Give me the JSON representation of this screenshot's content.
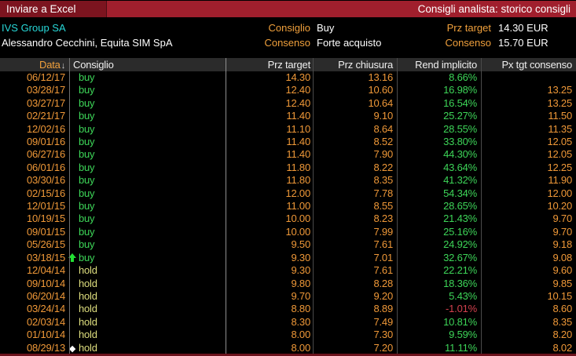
{
  "toolbar": {
    "export_label": "Inviare a Excel",
    "title": "Consigli analista: storico consigli"
  },
  "security": {
    "name": "IVS Group SA",
    "analyst": "Alessandro Cecchini, Equita SIM SpA"
  },
  "summary": {
    "consiglio_label": "Consiglio",
    "consiglio_value": "Buy",
    "prz_target_label": "Prz target",
    "prz_target_value": "14.30 EUR",
    "consenso_label": "Consenso",
    "consenso_value": "Forte acquisto",
    "consenso_px_label": "Consenso",
    "consenso_px_value": "15.70 EUR"
  },
  "table": {
    "columns": {
      "data": "Data",
      "consiglio": "Consiglio",
      "prz_target": "Prz target",
      "prz_chiusura": "Prz chiusura",
      "rend_implicito": "Rend implicito",
      "px_tgt_consenso": "Px tgt consenso"
    },
    "sort_column": "Data",
    "sort_direction": "down",
    "rows": [
      {
        "date": "06/12/17",
        "icon": "",
        "rating": "buy",
        "prz_target": "14.30",
        "prz_chiusura": "13.16",
        "rend": "8.66%",
        "px_tgt": ""
      },
      {
        "date": "03/28/17",
        "icon": "",
        "rating": "buy",
        "prz_target": "12.40",
        "prz_chiusura": "10.60",
        "rend": "16.98%",
        "px_tgt": "13.25"
      },
      {
        "date": "03/27/17",
        "icon": "",
        "rating": "buy",
        "prz_target": "12.40",
        "prz_chiusura": "10.64",
        "rend": "16.54%",
        "px_tgt": "13.25"
      },
      {
        "date": "02/21/17",
        "icon": "",
        "rating": "buy",
        "prz_target": "11.40",
        "prz_chiusura": "9.10",
        "rend": "25.27%",
        "px_tgt": "11.50"
      },
      {
        "date": "12/02/16",
        "icon": "",
        "rating": "buy",
        "prz_target": "11.10",
        "prz_chiusura": "8.64",
        "rend": "28.55%",
        "px_tgt": "11.35"
      },
      {
        "date": "09/01/16",
        "icon": "",
        "rating": "buy",
        "prz_target": "11.40",
        "prz_chiusura": "8.52",
        "rend": "33.80%",
        "px_tgt": "12.05"
      },
      {
        "date": "06/27/16",
        "icon": "",
        "rating": "buy",
        "prz_target": "11.40",
        "prz_chiusura": "7.90",
        "rend": "44.30%",
        "px_tgt": "12.05"
      },
      {
        "date": "06/01/16",
        "icon": "",
        "rating": "buy",
        "prz_target": "11.80",
        "prz_chiusura": "8.22",
        "rend": "43.64%",
        "px_tgt": "12.25"
      },
      {
        "date": "03/30/16",
        "icon": "",
        "rating": "buy",
        "prz_target": "11.80",
        "prz_chiusura": "8.35",
        "rend": "41.32%",
        "px_tgt": "11.90"
      },
      {
        "date": "02/15/16",
        "icon": "",
        "rating": "buy",
        "prz_target": "12.00",
        "prz_chiusura": "7.78",
        "rend": "54.34%",
        "px_tgt": "12.00"
      },
      {
        "date": "12/01/15",
        "icon": "",
        "rating": "buy",
        "prz_target": "11.00",
        "prz_chiusura": "8.55",
        "rend": "28.65%",
        "px_tgt": "10.20"
      },
      {
        "date": "10/19/15",
        "icon": "",
        "rating": "buy",
        "prz_target": "10.00",
        "prz_chiusura": "8.23",
        "rend": "21.43%",
        "px_tgt": "9.70"
      },
      {
        "date": "09/01/15",
        "icon": "",
        "rating": "buy",
        "prz_target": "10.00",
        "prz_chiusura": "7.99",
        "rend": "25.16%",
        "px_tgt": "9.70"
      },
      {
        "date": "05/26/15",
        "icon": "",
        "rating": "buy",
        "prz_target": "9.50",
        "prz_chiusura": "7.61",
        "rend": "24.92%",
        "px_tgt": "9.18"
      },
      {
        "date": "03/18/15",
        "icon": "up-arrow",
        "rating": "buy",
        "prz_target": "9.30",
        "prz_chiusura": "7.01",
        "rend": "32.67%",
        "px_tgt": "9.08"
      },
      {
        "date": "12/04/14",
        "icon": "",
        "rating": "hold",
        "prz_target": "9.30",
        "prz_chiusura": "7.61",
        "rend": "22.21%",
        "px_tgt": "9.60"
      },
      {
        "date": "09/10/14",
        "icon": "",
        "rating": "hold",
        "prz_target": "9.80",
        "prz_chiusura": "8.28",
        "rend": "18.36%",
        "px_tgt": "9.85"
      },
      {
        "date": "06/20/14",
        "icon": "",
        "rating": "hold",
        "prz_target": "9.70",
        "prz_chiusura": "9.20",
        "rend": "5.43%",
        "px_tgt": "10.15"
      },
      {
        "date": "03/24/14",
        "icon": "",
        "rating": "hold",
        "prz_target": "8.80",
        "prz_chiusura": "8.89",
        "rend": "-1.01%",
        "px_tgt": "8.60"
      },
      {
        "date": "02/03/14",
        "icon": "",
        "rating": "hold",
        "prz_target": "8.30",
        "prz_chiusura": "7.49",
        "rend": "10.81%",
        "px_tgt": "8.35"
      },
      {
        "date": "01/10/14",
        "icon": "",
        "rating": "hold",
        "prz_target": "8.00",
        "prz_chiusura": "7.30",
        "rend": "9.59%",
        "px_tgt": "8.20"
      },
      {
        "date": "08/29/13",
        "icon": "diamond",
        "rating": "hold",
        "prz_target": "8.00",
        "prz_chiusura": "7.20",
        "rend": "11.11%",
        "px_tgt": "8.02"
      }
    ]
  },
  "colors": {
    "titlebar_red": "#a01f2d",
    "button_red": "#7c141f",
    "accent_orange": "#ef9838",
    "buy_green": "#3dd558",
    "hold_yellow": "#dede7e",
    "negative_red": "#d4414e",
    "ticker_cyan": "#27d8d8",
    "header_bg": "#2b2b2b"
  }
}
